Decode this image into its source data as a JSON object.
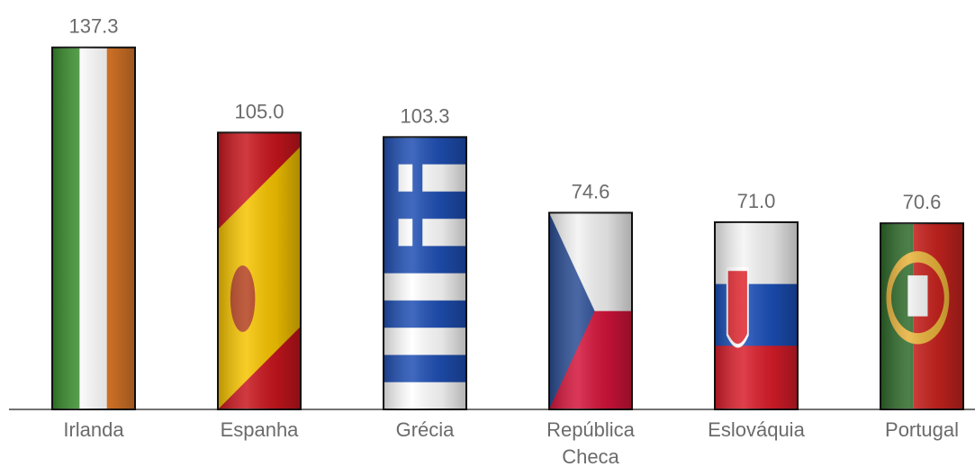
{
  "chart_data": {
    "type": "bar",
    "categories": [
      "Irlanda",
      "Espanha",
      "Grécia",
      "República Checa",
      "Eslováquia",
      "Portugal"
    ],
    "values": [
      137.3,
      105.0,
      103.3,
      74.6,
      71.0,
      70.6
    ],
    "value_labels": [
      "137.3",
      "105.0",
      "103.3",
      "74.6",
      "71.0",
      "70.6"
    ]
  }
}
